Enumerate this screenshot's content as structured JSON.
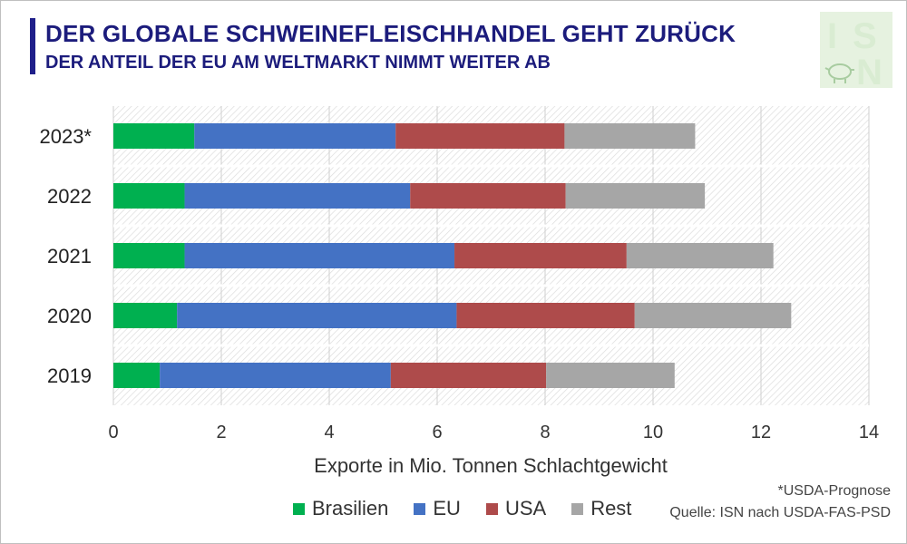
{
  "header": {
    "title": "DER GLOBALE SCHWEINEFLEISCHHANDEL GEHT ZURÜCK",
    "subtitle": "DER ANTEIL DER EU AM WELTMARKT NIMMT WEITER AB"
  },
  "logo": {
    "text": "ISN",
    "icon": "pig-icon"
  },
  "footnote": "*USDA-Prognose",
  "source": "Quelle: ISN nach USDA-FAS-PSD",
  "colors": {
    "Brasilien": "#00b050",
    "EU": "#4472c4",
    "USA": "#ae4b4b",
    "Rest": "#a6a6a6",
    "title": "#1c1c7c"
  },
  "chart_data": {
    "type": "bar",
    "orientation": "horizontal",
    "stacked": true,
    "categories": [
      "2023*",
      "2022",
      "2021",
      "2020",
      "2019"
    ],
    "series": [
      {
        "name": "Brasilien",
        "values": [
          1.5,
          1.32,
          1.32,
          1.18,
          0.86
        ]
      },
      {
        "name": "EU",
        "values": [
          3.73,
          4.18,
          5.0,
          5.18,
          4.28
        ]
      },
      {
        "name": "USA",
        "values": [
          3.13,
          2.88,
          3.19,
          3.3,
          2.88
        ]
      },
      {
        "name": "Rest",
        "values": [
          2.42,
          2.58,
          2.72,
          2.9,
          2.38
        ]
      }
    ],
    "xlabel": "Exporte in Mio. Tonnen Schlachtgewicht",
    "ylabel": "",
    "xlim": [
      0,
      14
    ],
    "xticks": [
      "0",
      "2",
      "4",
      "6",
      "8",
      "10",
      "12",
      "14"
    ],
    "legend_position": "bottom",
    "grid": true
  }
}
